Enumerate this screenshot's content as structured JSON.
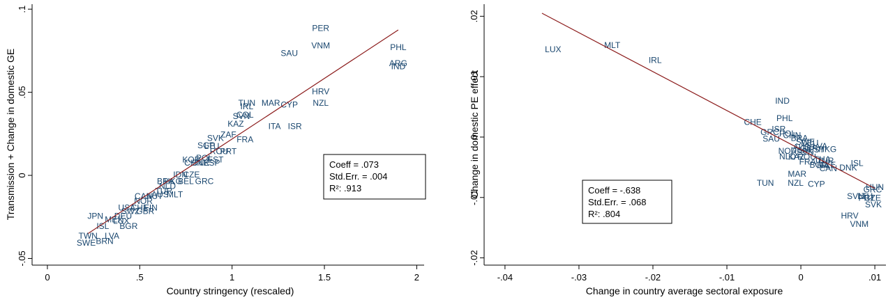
{
  "chart_data": [
    {
      "type": "scatter",
      "xlabel": "Country stringency (rescaled)",
      "ylabel": "Transmission + Change in domestic GE",
      "xlim": [
        -0.03,
        2.04
      ],
      "ylim": [
        -0.054,
        0.103
      ],
      "xticks": [
        {
          "value": 0,
          "label": "0"
        },
        {
          "value": 0.5,
          "label": ".5"
        },
        {
          "value": 1,
          "label": "1"
        },
        {
          "value": 1.5,
          "label": "1.5"
        },
        {
          "value": 2,
          "label": "2"
        }
      ],
      "yticks": [
        {
          "value": -0.05,
          "label": "-.05"
        },
        {
          "value": 0,
          "label": "0"
        },
        {
          "value": 0.05,
          "label": ".05"
        },
        {
          "value": 0.1,
          "label": ".1"
        }
      ],
      "fit_line": {
        "x": [
          0.22,
          1.9
        ],
        "y": [
          -0.035,
          0.0875
        ]
      },
      "stats": [
        "Coeff = .073",
        "Std.Err. = .004",
        "R²: .913"
      ],
      "points": [
        {
          "label": "PER",
          "x": 1.48,
          "y": 0.0885
        },
        {
          "label": "VNM",
          "x": 1.48,
          "y": 0.078
        },
        {
          "label": "SAU",
          "x": 1.31,
          "y": 0.0735
        },
        {
          "label": "PHL",
          "x": 1.9,
          "y": 0.077
        },
        {
          "label": "ARG",
          "x": 1.9,
          "y": 0.0675
        },
        {
          "label": "IND",
          "x": 1.9,
          "y": 0.0655
        },
        {
          "label": "HRV",
          "x": 1.48,
          "y": 0.0505
        },
        {
          "label": "NZL",
          "x": 1.48,
          "y": 0.0435
        },
        {
          "label": "TUN",
          "x": 1.08,
          "y": 0.0435
        },
        {
          "label": "MAR",
          "x": 1.21,
          "y": 0.0435
        },
        {
          "label": "CYP",
          "x": 1.31,
          "y": 0.0425
        },
        {
          "label": "IRL",
          "x": 1.08,
          "y": 0.0415
        },
        {
          "label": "COL",
          "x": 1.07,
          "y": 0.0365
        },
        {
          "label": "SVN",
          "x": 1.05,
          "y": 0.0355
        },
        {
          "label": "KAZ",
          "x": 1.02,
          "y": 0.031
        },
        {
          "label": "ITA",
          "x": 1.23,
          "y": 0.0295
        },
        {
          "label": "ISR",
          "x": 1.34,
          "y": 0.0295
        },
        {
          "label": "ZAF",
          "x": 0.98,
          "y": 0.0245
        },
        {
          "label": "FRA",
          "x": 1.07,
          "y": 0.0215
        },
        {
          "label": "SVK",
          "x": 0.91,
          "y": 0.0225
        },
        {
          "label": "SGP",
          "x": 0.86,
          "y": 0.018
        },
        {
          "label": "LTU",
          "x": 0.89,
          "y": 0.0175
        },
        {
          "label": "ROU",
          "x": 0.93,
          "y": 0.0145
        },
        {
          "label": "PRT",
          "x": 0.98,
          "y": 0.0145
        },
        {
          "label": "KOR",
          "x": 0.78,
          "y": 0.0095
        },
        {
          "label": "POL",
          "x": 0.85,
          "y": 0.0105
        },
        {
          "label": "EST",
          "x": 0.91,
          "y": 0.0095
        },
        {
          "label": "CHN",
          "x": 0.79,
          "y": 0.0075
        },
        {
          "label": "DNK",
          "x": 0.83,
          "y": 0.0075
        },
        {
          "label": "ESP",
          "x": 0.89,
          "y": 0.0075
        },
        {
          "label": "IDN",
          "x": 0.72,
          "y": 0.0005
        },
        {
          "label": "CZE",
          "x": 0.78,
          "y": 0.0005
        },
        {
          "label": "BRA",
          "x": 0.64,
          "y": -0.0035
        },
        {
          "label": "HKG",
          "x": 0.68,
          "y": -0.0035
        },
        {
          "label": "BEL",
          "x": 0.75,
          "y": -0.0035
        },
        {
          "label": "GRC",
          "x": 0.85,
          "y": -0.0035
        },
        {
          "label": "NLD",
          "x": 0.65,
          "y": -0.0065
        },
        {
          "label": "TUR",
          "x": 0.63,
          "y": -0.0095
        },
        {
          "label": "AUS",
          "x": 0.61,
          "y": -0.0115
        },
        {
          "label": "MLT",
          "x": 0.69,
          "y": -0.0115
        },
        {
          "label": "CAN",
          "x": 0.52,
          "y": -0.0125
        },
        {
          "label": "AUT",
          "x": 0.58,
          "y": -0.0125
        },
        {
          "label": "NOR",
          "x": 0.52,
          "y": -0.0155
        },
        {
          "label": "USA",
          "x": 0.43,
          "y": -0.0195
        },
        {
          "label": "CHE",
          "x": 0.5,
          "y": -0.0195
        },
        {
          "label": "FIN",
          "x": 0.56,
          "y": -0.0195
        },
        {
          "label": "SWZ",
          "x": 0.45,
          "y": -0.0215
        },
        {
          "label": "GBR",
          "x": 0.53,
          "y": -0.0215
        },
        {
          "label": "JPN",
          "x": 0.26,
          "y": -0.0245
        },
        {
          "label": "DEU",
          "x": 0.41,
          "y": -0.0245
        },
        {
          "label": "MEX",
          "x": 0.36,
          "y": -0.0265
        },
        {
          "label": "LUX",
          "x": 0.4,
          "y": -0.0275
        },
        {
          "label": "ISL",
          "x": 0.3,
          "y": -0.0305
        },
        {
          "label": "BGR",
          "x": 0.44,
          "y": -0.0305
        },
        {
          "label": "TWN",
          "x": 0.22,
          "y": -0.0365
        },
        {
          "label": "LVA",
          "x": 0.35,
          "y": -0.0365
        },
        {
          "label": "SWE",
          "x": 0.21,
          "y": -0.0405
        },
        {
          "label": "BRN",
          "x": 0.31,
          "y": -0.0395
        }
      ]
    },
    {
      "type": "scatter",
      "xlabel": "Change in country average sectoral exposure",
      "ylabel": "Change in domestic PE effect",
      "xlim": [
        -0.0415,
        0.0115
      ],
      "ylim": [
        -0.0212,
        0.022
      ],
      "xticks": [
        {
          "value": -0.04,
          "label": "-.04"
        },
        {
          "value": -0.03,
          "label": "-.03"
        },
        {
          "value": -0.02,
          "label": "-.02"
        },
        {
          "value": -0.01,
          "label": "-.01"
        },
        {
          "value": 0,
          "label": "0"
        },
        {
          "value": 0.01,
          "label": ".01"
        }
      ],
      "yticks": [
        {
          "value": -0.02,
          "label": "-.02"
        },
        {
          "value": -0.01,
          "label": "-.01"
        },
        {
          "value": 0,
          "label": "0"
        },
        {
          "value": 0.01,
          "label": ".01"
        },
        {
          "value": 0.02,
          "label": ".02"
        }
      ],
      "fit_line": {
        "x": [
          -0.035,
          0.01
        ],
        "y": [
          0.0205,
          -0.0085
        ]
      },
      "stats": [
        "Coeff = -.638",
        "Std.Err. = .068",
        "R²: .804"
      ],
      "points": [
        {
          "label": "LUX",
          "x": -0.0335,
          "y": 0.0145
        },
        {
          "label": "MLT",
          "x": -0.0255,
          "y": 0.0152
        },
        {
          "label": "IRL",
          "x": -0.0197,
          "y": 0.0127
        },
        {
          "label": "IND",
          "x": -0.0025,
          "y": 0.006
        },
        {
          "label": "PHL",
          "x": -0.0022,
          "y": 0.0031
        },
        {
          "label": "CHE",
          "x": -0.0065,
          "y": 0.0025
        },
        {
          "label": "ISR",
          "x": -0.003,
          "y": 0.0013
        },
        {
          "label": "GRC",
          "x": -0.0042,
          "y": 0.0008
        },
        {
          "label": "POL",
          "x": -0.0018,
          "y": 0.0006
        },
        {
          "label": "SAU",
          "x": -0.004,
          "y": -0.0003
        },
        {
          "label": "CHN",
          "x": -0.0012,
          "y": 0.0003
        },
        {
          "label": "BRA",
          "x": -0.0002,
          "y": -0.0002
        },
        {
          "label": "SWE",
          "x": 0.0006,
          "y": -0.0008
        },
        {
          "label": "DEU",
          "x": 0.0012,
          "y": -0.001
        },
        {
          "label": "LVA",
          "x": 0.0026,
          "y": -0.0015
        },
        {
          "label": "HKG",
          "x": 0.0036,
          "y": -0.002
        },
        {
          "label": "AUS",
          "x": 0.0001,
          "y": -0.0017
        },
        {
          "label": "GBR",
          "x": 0.0011,
          "y": -0.0019
        },
        {
          "label": "EST",
          "x": 0.0021,
          "y": -0.0021
        },
        {
          "label": "NOR",
          "x": -0.0018,
          "y": -0.0023
        },
        {
          "label": "USA",
          "x": -0.0002,
          "y": -0.0022
        },
        {
          "label": "SVN",
          "x": 0.0006,
          "y": -0.0025
        },
        {
          "label": "NLD",
          "x": -0.0018,
          "y": -0.0032
        },
        {
          "label": "KAZ",
          "x": -0.0006,
          "y": -0.0033
        },
        {
          "label": "ROU",
          "x": 0.0008,
          "y": -0.0033
        },
        {
          "label": "FRA",
          "x": 0.0009,
          "y": -0.0041
        },
        {
          "label": "THA",
          "x": 0.0029,
          "y": -0.0037
        },
        {
          "label": "TUR",
          "x": 0.0033,
          "y": -0.0039
        },
        {
          "label": "BGR",
          "x": 0.0024,
          "y": -0.0046
        },
        {
          "label": "ITA",
          "x": 0.003,
          "y": -0.0047
        },
        {
          "label": "CZE",
          "x": 0.0036,
          "y": -0.0046
        },
        {
          "label": "CAN",
          "x": 0.0037,
          "y": -0.0052
        },
        {
          "label": "ISL",
          "x": 0.0076,
          "y": -0.0043
        },
        {
          "label": "DNK",
          "x": 0.0064,
          "y": -0.0051
        },
        {
          "label": "MAR",
          "x": -0.0005,
          "y": -0.0061
        },
        {
          "label": "TUN",
          "x": -0.0048,
          "y": -0.0076
        },
        {
          "label": "NZL",
          "x": -0.0007,
          "y": -0.0076
        },
        {
          "label": "CYP",
          "x": 0.0021,
          "y": -0.0078
        },
        {
          "label": "HUN",
          "x": 0.01,
          "y": -0.0083
        },
        {
          "label": "GRC",
          "x": 0.0097,
          "y": -0.0087
        },
        {
          "label": "SVN",
          "x": 0.0074,
          "y": -0.0098
        },
        {
          "label": "LTU",
          "x": 0.0087,
          "y": -0.0098
        },
        {
          "label": "PRT",
          "x": 0.0089,
          "y": -0.0101
        },
        {
          "label": "CZE",
          "x": 0.0097,
          "y": -0.0101
        },
        {
          "label": "SVK",
          "x": 0.0098,
          "y": -0.0112
        },
        {
          "label": "HRV",
          "x": 0.0066,
          "y": -0.013
        },
        {
          "label": "VNM",
          "x": 0.0079,
          "y": -0.0144
        }
      ]
    }
  ]
}
